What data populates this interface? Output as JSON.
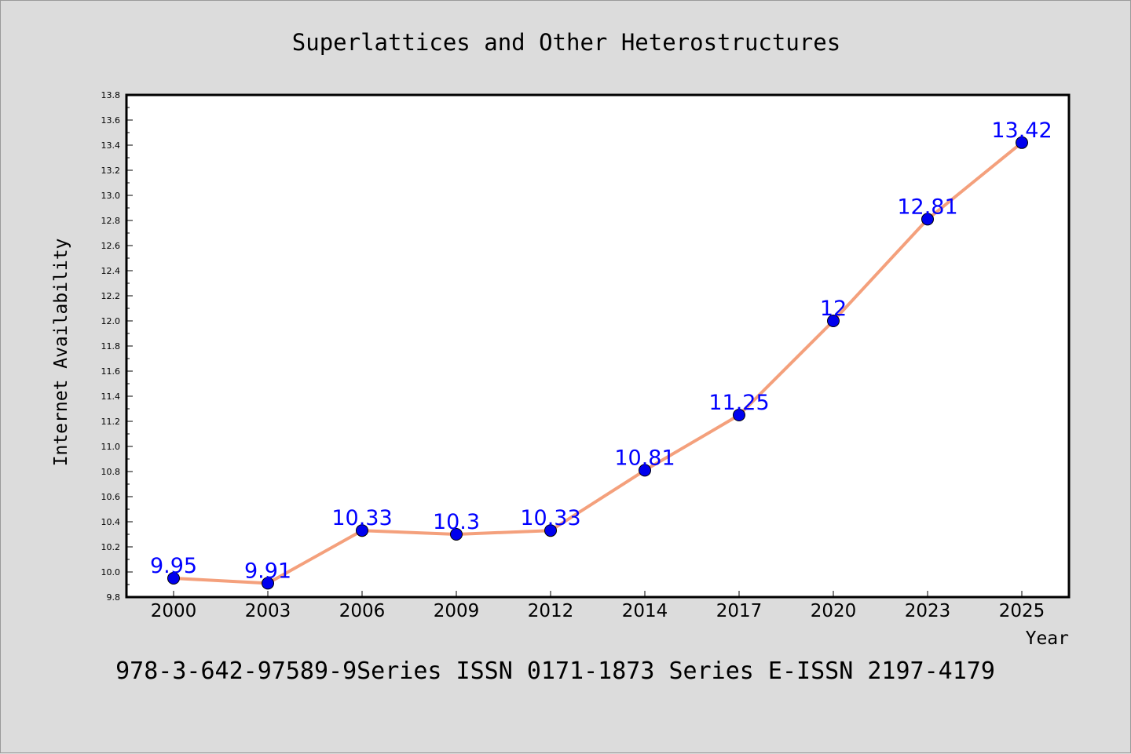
{
  "chart_data": {
    "type": "line",
    "title": "Superlattices and Other Heterostructures",
    "xlabel": "Year",
    "ylabel": "Internet Availability",
    "categories": [
      "2000",
      "2003",
      "2006",
      "2009",
      "2012",
      "2014",
      "2017",
      "2020",
      "2023",
      "2025"
    ],
    "series": [
      {
        "values": [
          9.95,
          9.91,
          10.33,
          10.3,
          10.33,
          10.81,
          11.25,
          12,
          12.81,
          13.42
        ],
        "labels": [
          "9.95",
          "9.91",
          "10.33",
          "10.3",
          "10.33",
          "10.81",
          "11.25",
          "12",
          "12.81",
          "13.42"
        ]
      }
    ],
    "ylim": [
      9.8,
      13.8
    ],
    "ytick_step": 0.2,
    "yticks": [
      "9.8",
      "10.0",
      "10.2",
      "10.4",
      "10.6",
      "10.8",
      "11.0",
      "11.2",
      "11.4",
      "11.6",
      "11.8",
      "12.0",
      "12.2",
      "12.4",
      "12.6",
      "12.8",
      "13.0",
      "13.2",
      "13.4",
      "13.6",
      "13.8"
    ],
    "grid": false,
    "legend": "none",
    "colors": {
      "line": "#f4a07c",
      "marker": "#0000ee",
      "label": "#0000ff",
      "background": "#dcdcdc"
    }
  },
  "footer": {
    "text": "978-3-642-97589-9Series ISSN 0171-1873 Series E-ISSN 2197-4179"
  }
}
